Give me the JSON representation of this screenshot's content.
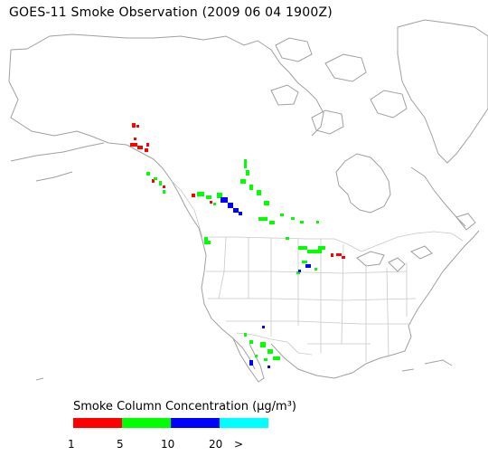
{
  "title": "GOES-11 Smoke Observation (2009 06 04  1900Z)",
  "legend": {
    "title": "Smoke Column Concentration (μg/m³)",
    "colors": [
      "#ff0000",
      "#00ff00",
      "#0000ff",
      "#00ffff"
    ],
    "ticks": [
      "1",
      "5",
      "10",
      "20",
      ">"
    ]
  },
  "map": {
    "coastline_color": "#a0a0a0",
    "border_color": "#c8c8c8",
    "region": "North America"
  }
}
